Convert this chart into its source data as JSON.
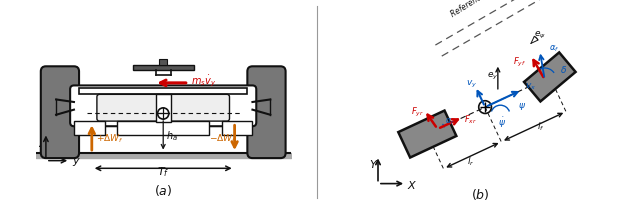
{
  "fig_width": 6.4,
  "fig_height": 2.04,
  "dpi": 100,
  "bg_color": "#ffffff",
  "orange": "#CC6600",
  "red": "#CC0000",
  "blue": "#0055BB",
  "dark": "#111111",
  "gray": "#888888",
  "dgray": "#666666",
  "lgray": "#CCCCCC"
}
